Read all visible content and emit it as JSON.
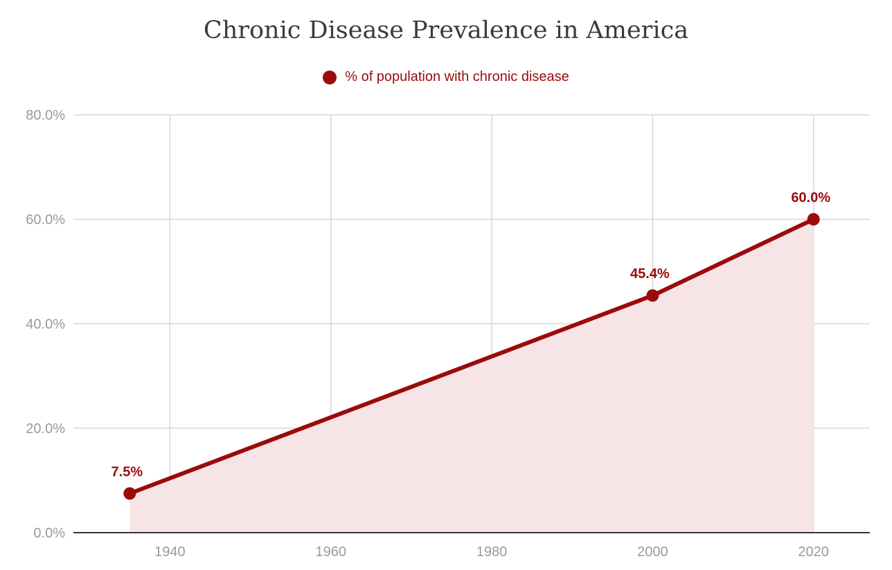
{
  "chart_data": {
    "type": "area",
    "title": "Chronic Disease Prevalence in America",
    "xlabel": "",
    "ylabel": "",
    "x": [
      1935,
      2000,
      2020
    ],
    "series": [
      {
        "name": "% of population with chronic disease",
        "values": [
          7.5,
          45.4,
          60.0
        ],
        "labels": [
          "7.5%",
          "45.4%",
          "60.0%"
        ]
      }
    ],
    "xlim": [
      1928,
      2027
    ],
    "ylim": [
      0,
      80
    ],
    "x_ticks": [
      1940,
      1960,
      1980,
      2000,
      2020
    ],
    "x_tick_labels": [
      "1940",
      "1960",
      "1980",
      "2000",
      "2020"
    ],
    "y_ticks": [
      0,
      20,
      40,
      60,
      80
    ],
    "y_tick_labels": [
      "0.0%",
      "20.0%",
      "40.0%",
      "60.0%",
      "80.0%"
    ],
    "grid": true,
    "legend_position": "top-center"
  },
  "colors": {
    "series_line": "#9b0b0b",
    "series_fill": "#f6e4e6",
    "grid": "#d7d7d7",
    "axis": "#333333",
    "tick_text": "#9a9a9a",
    "title_text": "#3a3a3a"
  }
}
